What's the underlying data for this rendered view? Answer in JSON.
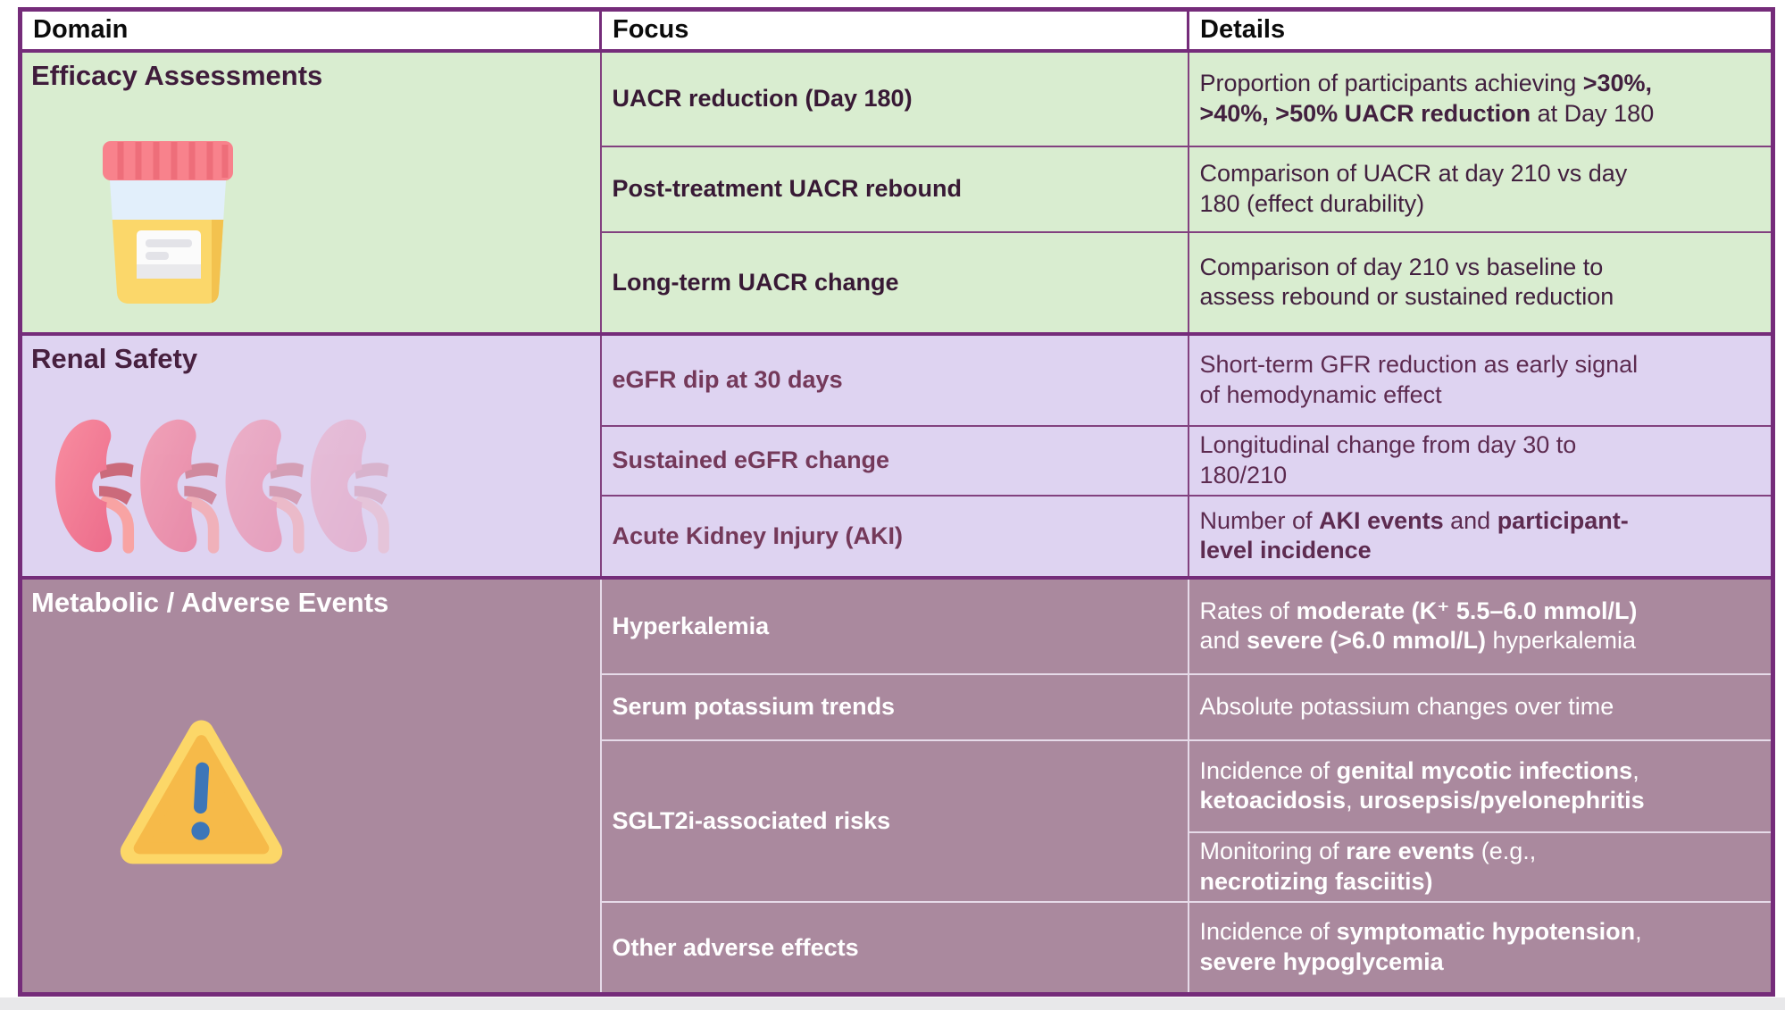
{
  "header": {
    "columns": [
      "Domain",
      "Focus",
      "Details"
    ]
  },
  "palette": {
    "table_border": "#752c7a",
    "row_divider": "#82417f",
    "metabolic_divider": "#e6dbe9",
    "header_bg": "#ffffff",
    "section_efficacy_bg": "#d9edd0",
    "section_renal_bg": "#ded3f1",
    "section_metabolic_bg": "#aa899e",
    "metabolic_text": "#ffffff",
    "urine_cap_red": "#f8828c",
    "urine_yellow": "#fbd76a",
    "kidney_pink": "#f4778e",
    "warning_yellow": "#f6ba49",
    "warning_blue": "#3d76b8"
  },
  "sections": [
    {
      "name": "Efficacy Assessments",
      "icon": "urine-sample-icon",
      "rows": [
        {
          "focus": "UACR reduction (Day 180)",
          "details": [
            {
              "t": "Proportion of participants achieving "
            },
            {
              "t": ">30%,\n>40%, >50% UACR reduction",
              "b": true
            },
            {
              "t": " at Day 180"
            }
          ]
        },
        {
          "focus": "Post-treatment UACR rebound",
          "details": [
            {
              "t": "Comparison of UACR at day 210 vs day\n180 (effect durability)"
            }
          ]
        },
        {
          "focus": "Long-term UACR change",
          "details": [
            {
              "t": "Comparison of day 210 vs baseline to\nassess rebound or sustained reduction"
            }
          ]
        }
      ]
    },
    {
      "name": "Renal Safety",
      "icon": "kidneys-fading-icon",
      "rows": [
        {
          "focus": "eGFR dip at 30 days",
          "details": [
            {
              "t": "Short-term GFR reduction as early signal\nof hemodynamic effect"
            }
          ]
        },
        {
          "focus": "Sustained eGFR change",
          "details": [
            {
              "t": "Longitudinal change from day 30 to\n180/210"
            }
          ]
        },
        {
          "focus": "Acute Kidney Injury (AKI)",
          "details": [
            {
              "t": "Number of "
            },
            {
              "t": "AKI events",
              "b": true
            },
            {
              "t": " and "
            },
            {
              "t": "participant-\nlevel incidence",
              "b": true
            }
          ]
        }
      ]
    },
    {
      "name": "Metabolic / Adverse Events",
      "icon": "warning-triangle-icon",
      "rows": [
        {
          "focus": "Hyperkalemia",
          "details": [
            {
              "t": "Rates of "
            },
            {
              "t": "moderate (K⁺ 5.5–6.0 mmol/L)",
              "b": true
            },
            {
              "t": "\nand "
            },
            {
              "t": "severe (>6.0 mmol/L)",
              "b": true
            },
            {
              "t": " hyperkalemia"
            }
          ]
        },
        {
          "focus": "Serum potassium trends",
          "details": [
            {
              "t": "Absolute potassium changes over time"
            }
          ]
        },
        {
          "focus": "SGLT2i-associated risks",
          "details": [
            {
              "t": "Incidence of "
            },
            {
              "t": "genital mycotic infections",
              "b": true
            },
            {
              "t": ",\n"
            },
            {
              "t": "ketoacidosis",
              "b": true
            },
            {
              "t": ", "
            },
            {
              "t": "urosepsis/pyelonephritis",
              "b": true
            }
          ]
        },
        {
          "details": [
            {
              "t": "Monitoring of "
            },
            {
              "t": "rare events",
              "b": true
            },
            {
              "t": " (e.g.,\n"
            },
            {
              "t": "necrotizing fasciitis)",
              "b": true
            }
          ]
        },
        {
          "focus": "Other adverse effects",
          "details": [
            {
              "t": "Incidence of "
            },
            {
              "t": "symptomatic hypotension",
              "b": true
            },
            {
              "t": ",\n"
            },
            {
              "t": "severe hypoglycemia",
              "b": true
            }
          ]
        }
      ]
    }
  ]
}
